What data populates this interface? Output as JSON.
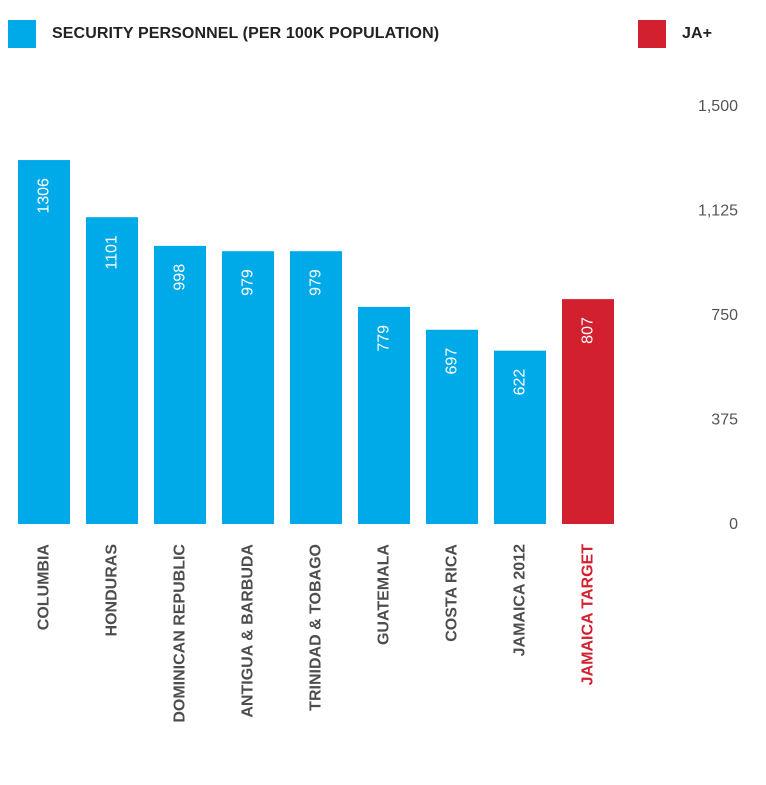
{
  "legend": [
    {
      "label": "SECURITY PERSONNEL (PER 100K POPULATION)",
      "color": "#00a9e8"
    },
    {
      "label": "JA+",
      "color": "#d3202f"
    }
  ],
  "chart_data": {
    "type": "bar",
    "categories": [
      "COLUMBIA",
      "HONDURAS",
      "DOMINICAN REPUBLIC",
      "ANTIGUA & BARBUDA",
      "TRINIDAD & TOBAGO",
      "GUATEMALA",
      "COSTA RICA",
      "JAMAICA 2012",
      "JAMAICA TARGET"
    ],
    "values": [
      1306,
      1101,
      998,
      979,
      979,
      779,
      697,
      622,
      807
    ],
    "series": [
      {
        "name": "SECURITY PERSONNEL (PER 100K POPULATION)",
        "values": [
          1306,
          1101,
          998,
          979,
          979,
          779,
          697,
          622,
          null
        ]
      },
      {
        "name": "JA+",
        "values": [
          null,
          null,
          null,
          null,
          null,
          null,
          null,
          null,
          807
        ]
      }
    ],
    "ylim": [
      0,
      1500
    ],
    "yticks": [
      "1,500",
      "1,125",
      "750",
      "375",
      "0"
    ],
    "ytick_values": [
      1500,
      1125,
      750,
      375,
      0
    ],
    "axis_position": "right",
    "grid": false,
    "colors": {
      "primary": "#00a9e8",
      "highlight": "#d3202f",
      "category_text": "#4d4d4d",
      "highlight_text": "#d3202f"
    }
  }
}
